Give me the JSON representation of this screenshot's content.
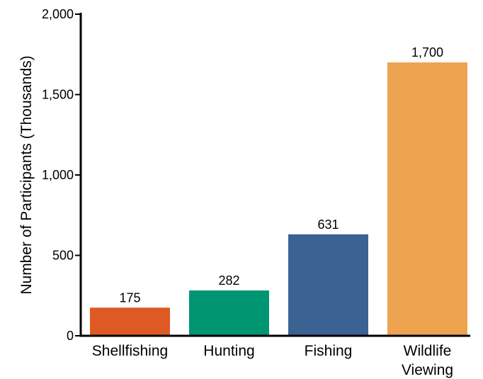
{
  "chart_data": {
    "type": "bar",
    "title": "",
    "xlabel": "",
    "ylabel": "Number of Participants (Thousands)",
    "ylim": [
      0,
      2000
    ],
    "yticks": [
      0,
      500,
      1000,
      1500,
      2000
    ],
    "ytick_labels": [
      "0",
      "500",
      "1,000",
      "1,500",
      "2,000"
    ],
    "grid": false,
    "legend": "none",
    "categories": [
      {
        "label": [
          "Shellfishing"
        ],
        "value": 175,
        "value_label": "175",
        "color": "#dd5a24"
      },
      {
        "label": [
          "Hunting"
        ],
        "value": 282,
        "value_label": "282",
        "color": "#019672"
      },
      {
        "label": [
          "Fishing"
        ],
        "value": 631,
        "value_label": "631",
        "color": "#3c6193"
      },
      {
        "label": [
          "Wildlife",
          "Viewing"
        ],
        "value": 1700,
        "value_label": "1,700",
        "color": "#eea351"
      }
    ]
  }
}
